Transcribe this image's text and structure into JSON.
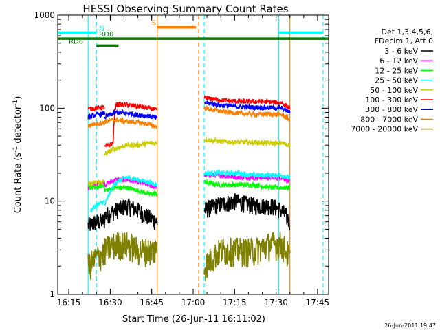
{
  "chart_data": {
    "type": "line",
    "title": "HESSI Observing Summary Count Rates",
    "xlabel": "Start Time (26-Jun-11 16:11:02)",
    "ylabel_main": "Count Rate (s",
    "ylabel_sup1": "-1",
    "ylabel_mid": " detector",
    "ylabel_sup2": "-1",
    "ylabel_end": ")",
    "ylabel": "Count Rate (s-1 detector-1)",
    "y_scale": "log",
    "ylim": [
      1,
      1000
    ],
    "xlim": [
      "16:11",
      "17:49"
    ],
    "x_ticks": [
      "16:15",
      "16:30",
      "16:45",
      "17:00",
      "17:15",
      "17:30",
      "17:45"
    ],
    "y_ticks": [
      "1",
      "10",
      "100",
      "1000"
    ],
    "footer_timestamp": "26-Jun-2011 19:47",
    "legend": {
      "placement": "right",
      "header1": "Det 1,3,4,5,6,",
      "header2": "FDecim 1, Att 0"
    },
    "series": [
      {
        "name": "3 - 6 keV",
        "color": "#000000",
        "segments": [
          {
            "t": [
              "16:22",
              "16:25",
              "16:28"
            ],
            "y": [
              5.5,
              6,
              6.2
            ]
          },
          {
            "t": [
              "16:28",
              "16:32",
              "16:36",
              "16:40",
              "16:43",
              "16:47"
            ],
            "y": [
              7,
              8,
              9,
              8,
              7,
              6
            ]
          },
          {
            "t": [
              "17:04",
              "17:08",
              "17:15",
              "17:22",
              "17:28",
              "17:32",
              "17:35"
            ],
            "y": [
              8,
              9,
              10,
              9,
              9,
              8,
              6
            ]
          }
        ]
      },
      {
        "name": "6 - 12 keV",
        "color": "#ff00ff",
        "segments": [
          {
            "t": [
              "16:22",
              "16:25",
              "16:28"
            ],
            "y": [
              14,
              15,
              16
            ]
          },
          {
            "t": [
              "16:28",
              "16:32",
              "16:36",
              "16:40",
              "16:44",
              "16:47"
            ],
            "y": [
              15,
              17,
              17,
              16,
              15,
              14
            ]
          },
          {
            "t": [
              "17:04",
              "17:10",
              "17:16",
              "17:22",
              "17:28",
              "17:32",
              "17:35"
            ],
            "y": [
              19,
              19,
              18,
              18,
              18,
              18,
              16
            ]
          }
        ]
      },
      {
        "name": "12 - 25 keV",
        "color": "#00ff00",
        "segments": [
          {
            "t": [
              "16:22",
              "16:25",
              "16:28"
            ],
            "y": [
              14,
              14,
              15
            ]
          },
          {
            "t": [
              "16:28",
              "16:32",
              "16:36",
              "16:40",
              "16:44",
              "16:47"
            ],
            "y": [
              13,
              14,
              14,
              13,
              12,
              12
            ]
          },
          {
            "t": [
              "17:04",
              "17:10",
              "17:16",
              "17:22",
              "17:28",
              "17:32",
              "17:35"
            ],
            "y": [
              16,
              15,
              15,
              15,
              14,
              14,
              14
            ]
          }
        ]
      },
      {
        "name": "25 - 50 keV",
        "color": "#00ffff",
        "segments": [
          {
            "t": [
              "16:23",
              "16:25",
              "16:28"
            ],
            "y": [
              8,
              9,
              10
            ]
          },
          {
            "t": [
              "16:28",
              "16:32",
              "16:36",
              "16:40",
              "16:44",
              "16:47"
            ],
            "y": [
              9,
              16,
              18,
              17,
              16,
              15
            ]
          },
          {
            "t": [
              "17:04",
              "17:10",
              "17:16",
              "17:22",
              "17:28",
              "17:32",
              "17:35"
            ],
            "y": [
              20,
              20,
              20,
              19,
              19,
              19,
              18
            ]
          }
        ]
      },
      {
        "name": "50 - 100 keV",
        "color": "#cccc00",
        "segments": [
          {
            "t": [
              "16:22",
              "16:25",
              "16:28"
            ],
            "y": [
              15,
              16,
              16
            ]
          },
          {
            "t": [
              "16:28",
              "16:31",
              "16:36",
              "16:40",
              "16:44",
              "16:47"
            ],
            "y": [
              32,
              36,
              40,
              40,
              42,
              42
            ]
          },
          {
            "t": [
              "17:04",
              "17:10",
              "17:16",
              "17:22",
              "17:28",
              "17:32",
              "17:35"
            ],
            "y": [
              46,
              44,
              43,
              43,
              42,
              42,
              40
            ]
          }
        ]
      },
      {
        "name": "100 - 300 keV",
        "color": "#ff0000",
        "segments": [
          {
            "t": [
              "16:22",
              "16:25",
              "16:28"
            ],
            "y": [
              98,
              100,
              102
            ]
          },
          {
            "t": [
              "16:28",
              "16:31",
              "16:32",
              "16:36",
              "16:40",
              "16:44",
              "16:47"
            ],
            "y": [
              38,
              42,
              110,
              108,
              105,
              100,
              95
            ]
          },
          {
            "t": [
              "17:04",
              "17:10",
              "17:16",
              "17:22",
              "17:28",
              "17:32",
              "17:35"
            ],
            "y": [
              130,
              122,
              118,
              118,
              116,
              114,
              100
            ]
          }
        ]
      },
      {
        "name": "300 - 800 keV",
        "color": "#0000ff",
        "segments": [
          {
            "t": [
              "16:22",
              "16:25",
              "16:28"
            ],
            "y": [
              80,
              85,
              88
            ]
          },
          {
            "t": [
              "16:28",
              "16:32",
              "16:36",
              "16:40",
              "16:44",
              "16:47"
            ],
            "y": [
              80,
              90,
              88,
              85,
              82,
              78
            ]
          },
          {
            "t": [
              "17:04",
              "17:10",
              "17:16",
              "17:22",
              "17:28",
              "17:32",
              "17:35"
            ],
            "y": [
              115,
              108,
              104,
              102,
              101,
              100,
              90
            ]
          }
        ]
      },
      {
        "name": "800 - 7000 keV",
        "color": "#ff8000",
        "segments": [
          {
            "t": [
              "16:22",
              "16:25",
              "16:28"
            ],
            "y": [
              65,
              68,
              70
            ]
          },
          {
            "t": [
              "16:28",
              "16:32",
              "16:36",
              "16:40",
              "16:44",
              "16:47"
            ],
            "y": [
              72,
              75,
              72,
              70,
              67,
              63
            ]
          },
          {
            "t": [
              "17:04",
              "17:10",
              "17:16",
              "17:22",
              "17:28",
              "17:32",
              "17:35"
            ],
            "y": [
              100,
              92,
              88,
              86,
              86,
              85,
              75
            ]
          }
        ]
      },
      {
        "name": "7000 - 20000 keV",
        "color": "#808000",
        "segments": [
          {
            "t": [
              "16:22",
              "16:25",
              "16:28"
            ],
            "y": [
              2,
              2.5,
              2.8
            ]
          },
          {
            "t": [
              "16:28",
              "16:32",
              "16:36",
              "16:40",
              "16:44",
              "16:47"
            ],
            "y": [
              3,
              3.5,
              3.5,
              3,
              3,
              3
            ]
          },
          {
            "t": [
              "17:04",
              "17:10",
              "17:16",
              "17:22",
              "17:28",
              "17:32",
              "17:35"
            ],
            "y": [
              2,
              3,
              3,
              3,
              3.5,
              3.5,
              2.5
            ]
          }
        ]
      }
    ],
    "annotations": [
      {
        "label": "N",
        "color": "#00ffff",
        "y": 650,
        "spans": [
          [
            "16:11",
            "16:25"
          ],
          [
            "17:31",
            "17:47"
          ]
        ],
        "label_at": "16:26"
      },
      {
        "label": "RD0",
        "color": "#007f00",
        "y": 560,
        "spans": [
          [
            "16:11",
            "17:49"
          ]
        ],
        "label_at": "16:26"
      },
      {
        "label": "RD6",
        "color": "#007f00",
        "y": 470,
        "spans": [
          [
            "16:25",
            "16:33"
          ]
        ],
        "label_at": "16:15"
      },
      {
        "label": "S",
        "color": "#ff8000",
        "y": 740,
        "spans": [
          [
            "16:47",
            "17:01"
          ]
        ],
        "label_at": "16:45"
      }
    ],
    "vlines": [
      {
        "t": "16:22",
        "color": "#00ffff",
        "style": "solid"
      },
      {
        "t": "16:25",
        "color": "#00ffff",
        "style": "dashed"
      },
      {
        "t": "16:47",
        "color": "#ff8000",
        "style": "solid"
      },
      {
        "t": "17:02",
        "color": "#ff8000",
        "style": "dashed"
      },
      {
        "t": "17:04",
        "color": "#00ffff",
        "style": "dashed"
      },
      {
        "t": "17:31",
        "color": "#00ffff",
        "style": "solid"
      },
      {
        "t": "17:35",
        "color": "#ff8000",
        "style": "solid"
      },
      {
        "t": "17:47",
        "color": "#00ffff",
        "style": "dashed"
      }
    ]
  }
}
